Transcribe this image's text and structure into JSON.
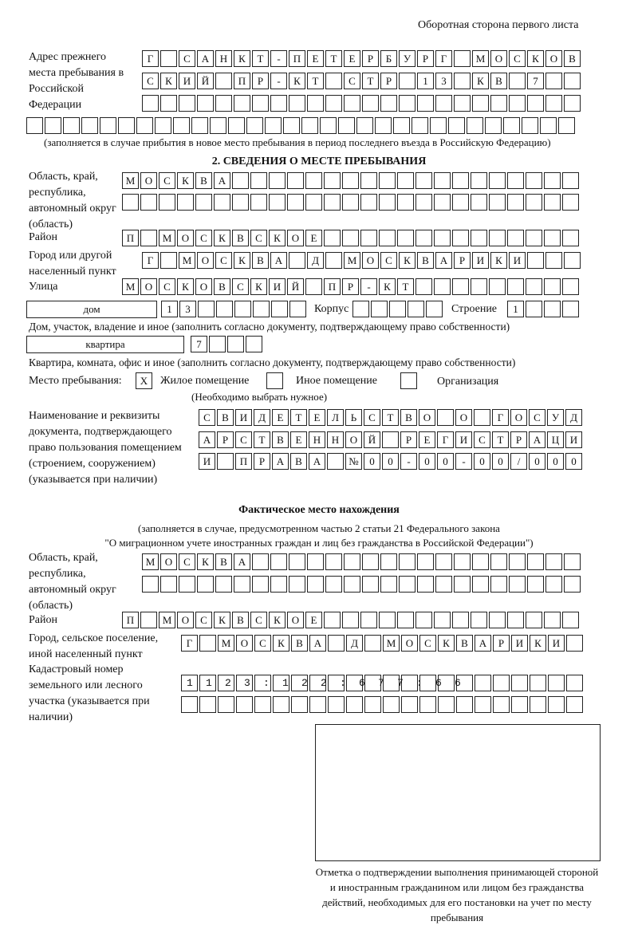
{
  "header": "Оборотная сторона первого листа",
  "prev_address": {
    "label": "Адрес прежнего места пребывания в Российской Федерации",
    "rows": [
      "Г САНКТ-ПЕТЕРБУРГ МОСКОВ",
      "СКИЙ ПР-КТ СТР 13 КВ 7",
      "",
      ""
    ],
    "note": "(заполняется в случае прибытия в новое место пребывания в период последнего въезда в Российскую Федерацию)"
  },
  "section2": {
    "title": "2. СВЕДЕНИЯ О МЕСТЕ ПРЕБЫВАНИЯ",
    "region_label": "Область, край, республика, автономный округ (область)",
    "region_rows": [
      "МОСКВА",
      ""
    ],
    "district_label": "Район",
    "district": "П МОСКВСКОЕ",
    "city_label": "Город или другой населенный пункт",
    "city": "Г МОСКВА Д МОСКВАРИКИ",
    "street_label": "Улица",
    "street": "МОСКОВСКИЙ ПР-КТ",
    "house_type": "дом",
    "house": "13",
    "korpus_label": "Корпус",
    "korpus": "",
    "building_label": "Строение",
    "building": "1",
    "house_note": "Дом, участок, владение и иное (заполнить согласно документу, подтверждающему право собственности)",
    "flat_type": "квартира",
    "flat": "7",
    "flat_note": "Квартира, комната, офис и иное (заполнить согласно документу, подтверждающему право собственности)",
    "stay_label": "Место пребывания:",
    "options": [
      {
        "label": "Жилое помещение",
        "mark": "X"
      },
      {
        "label": "Иное помещение",
        "mark": ""
      },
      {
        "label": "Организация",
        "mark": ""
      }
    ],
    "choose_note": "(Необходимо выбрать нужное)",
    "doc_label": "Наименование и реквизиты документа, подтверждающего право пользования помещением (строением, сооружением) (указывается при наличии)",
    "doc_rows": [
      "СВИДЕТЕЛЬСТВО О ГОСУД",
      "АРСТВЕННОЙ РЕГИСТРАЦИ",
      "И ПРАВА №00-00-00/000"
    ]
  },
  "actual": {
    "title": "Фактическое место нахождения",
    "note1": "(заполняется в случае, предусмотренном частью 2 статьи 21 Федерального закона",
    "note2": "\"О миграционном учете иностранных граждан и лиц без гражданства в Российской Федерации\")",
    "region_label": "Область, край, республика, автономный округ (область)",
    "region_rows": [
      "МОСКВА",
      ""
    ],
    "district_label": "Район",
    "district": "П МОСКВСКОЕ",
    "city_label": "Город, сельское поселение, иной населенный пункт",
    "city": "Г МОСКВА Д МОСКВАРИКИ",
    "cadastre_label": "Кадастровый номер земельного или лесного участка (указывается при наличии)",
    "cadastre_rows": [
      "1123:122:677:66",
      ""
    ]
  },
  "stamp": {
    "caption": "Отметка о подтверждении выполнения принимающей стороной и иностранным гражданином или лицом без гражданства действий, необходимых для его постановки на учет по месту пребывания"
  }
}
